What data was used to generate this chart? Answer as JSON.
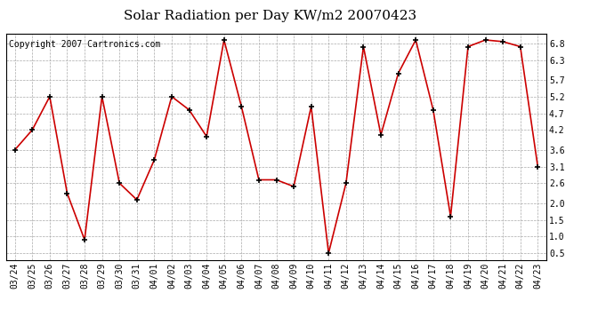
{
  "title": "Solar Radiation per Day KW/m2 20070423",
  "copyright_text": "Copyright 2007 Cartronics.com",
  "dates": [
    "03/24",
    "03/25",
    "03/26",
    "03/27",
    "03/28",
    "03/29",
    "03/30",
    "03/31",
    "04/01",
    "04/02",
    "04/03",
    "04/04",
    "04/05",
    "04/06",
    "04/07",
    "04/08",
    "04/09",
    "04/10",
    "04/11",
    "04/12",
    "04/13",
    "04/14",
    "04/15",
    "04/16",
    "04/17",
    "04/18",
    "04/19",
    "04/20",
    "04/21",
    "04/22",
    "04/23"
  ],
  "values": [
    3.6,
    4.2,
    5.2,
    2.3,
    0.9,
    5.2,
    2.6,
    2.1,
    3.3,
    5.2,
    4.8,
    4.0,
    6.9,
    4.9,
    2.7,
    2.7,
    2.5,
    4.9,
    0.5,
    2.6,
    6.7,
    4.05,
    5.9,
    6.9,
    4.8,
    1.6,
    6.7,
    6.9,
    6.85,
    6.7,
    3.1
  ],
  "line_color": "#cc0000",
  "marker_color": "#000000",
  "bg_color": "#ffffff",
  "plot_bg_color": "#ffffff",
  "grid_color": "#aaaaaa",
  "yticks": [
    0.5,
    1.0,
    1.5,
    2.0,
    2.6,
    3.1,
    3.6,
    4.2,
    4.7,
    5.2,
    5.7,
    6.3,
    6.8
  ],
  "title_fontsize": 11,
  "copyright_fontsize": 7,
  "tick_fontsize": 7
}
